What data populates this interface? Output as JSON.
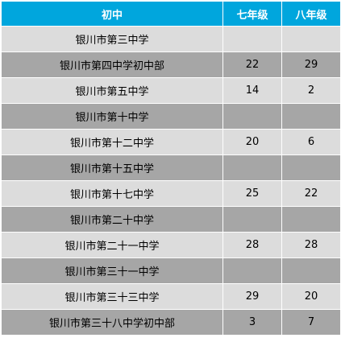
{
  "colors": {
    "header_bg": "#00a6dd",
    "header_text": "#ffffff",
    "row_light": "#dcdcdc",
    "row_dark": "#a6a6a6"
  },
  "table": {
    "headers": {
      "school": "初中",
      "grade7": "七年级",
      "grade8": "八年级"
    },
    "rows": [
      {
        "school": "银川市第三中学",
        "grade7": "",
        "grade8": ""
      },
      {
        "school": "银川市第四中学初中部",
        "grade7": "22",
        "grade8": "29"
      },
      {
        "school": "银川市第五中学",
        "grade7": "14",
        "grade8": "2"
      },
      {
        "school": "银川市第十中学",
        "grade7": "",
        "grade8": ""
      },
      {
        "school": "银川市第十二中学",
        "grade7": "20",
        "grade8": "6"
      },
      {
        "school": "银川市第十五中学",
        "grade7": "",
        "grade8": ""
      },
      {
        "school": "银川市第十七中学",
        "grade7": "25",
        "grade8": "22"
      },
      {
        "school": "银川市第二十中学",
        "grade7": "",
        "grade8": ""
      },
      {
        "school": "银川市第二十一中学",
        "grade7": "28",
        "grade8": "28"
      },
      {
        "school": "银川市第三十一中学",
        "grade7": "",
        "grade8": ""
      },
      {
        "school": "银川市第三十三中学",
        "grade7": "29",
        "grade8": "20"
      },
      {
        "school": "银川市第三十八中学初中部",
        "grade7": "3",
        "grade8": "7"
      }
    ]
  }
}
